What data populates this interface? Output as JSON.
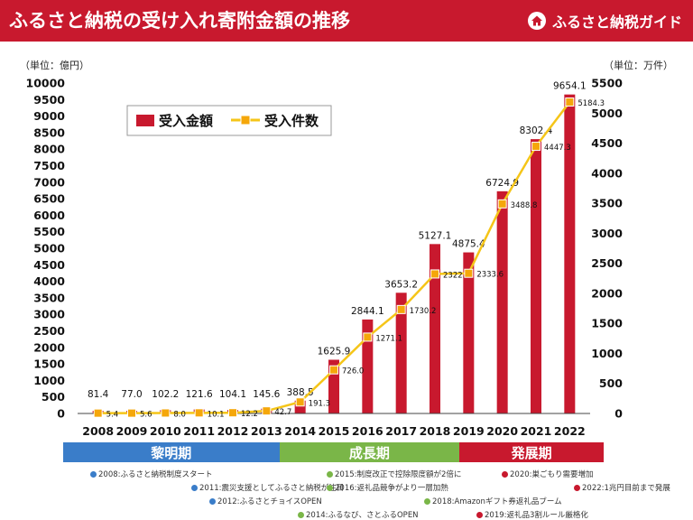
{
  "header": {
    "title": "ふるさと納税の受け入れ寄附金額の推移",
    "brand": "ふるさと納税ガイド"
  },
  "colors": {
    "amount": "#c8192e",
    "count_line": "#f5c518",
    "count_marker": "#f5a70a",
    "header": "#c8192e"
  },
  "chart_data": {
    "type": "bar",
    "categories": [
      "2008",
      "2009",
      "2010",
      "2011",
      "2012",
      "2013",
      "2014",
      "2015",
      "2016",
      "2017",
      "2018",
      "2019",
      "2020",
      "2021",
      "2022"
    ],
    "series": [
      {
        "name": "受入金額",
        "type": "bar",
        "axis": "left",
        "values": [
          81.4,
          77.0,
          102.2,
          121.6,
          104.1,
          145.6,
          388.5,
          1625.9,
          2844.1,
          3653.2,
          5127.1,
          4875.4,
          6724.9,
          8302.4,
          9654.1
        ],
        "labels": [
          "81.4",
          "77.0",
          "102.2",
          "121.6",
          "104.1",
          "145.6",
          "388.5",
          "1625.9",
          "2844.1",
          "3653.2",
          "5127.1",
          "4875.4",
          "6724.9",
          "8302.4",
          "9654.1"
        ]
      },
      {
        "name": "受入件数",
        "type": "line",
        "axis": "right",
        "values": [
          5.4,
          5.6,
          8.0,
          10.1,
          12.2,
          42.7,
          191.3,
          726.0,
          1271.1,
          1730.2,
          2322.4,
          2333.6,
          3488.8,
          4447.3,
          5184.3
        ],
        "labels": [
          "5.4",
          "5.6",
          "8.0",
          "10.1",
          "12.2",
          "42.7",
          "191.3",
          "726.0",
          "1271.1",
          "1730.2",
          "2322.4",
          "2333.6",
          "3488.8",
          "4447.3",
          "5184.3"
        ]
      }
    ],
    "y_left": {
      "unit_label": "（単位：億円）",
      "range": [
        0,
        10000
      ],
      "ticks": [
        "0",
        "500",
        "1000",
        "1500",
        "2000",
        "2500",
        "3000",
        "3500",
        "4000",
        "4500",
        "5000",
        "5500",
        "6000",
        "6500",
        "7000",
        "7500",
        "8000",
        "8500",
        "9000",
        "9500",
        "10000"
      ]
    },
    "y_right": {
      "unit_label": "（単位：万件）",
      "range": [
        0,
        5500
      ],
      "ticks": [
        "0",
        "500",
        "1000",
        "1500",
        "2000",
        "2500",
        "3000",
        "3500",
        "4000",
        "4500",
        "5000",
        "5500"
      ]
    },
    "legend_placement": "top-left",
    "grid": false
  },
  "periods": [
    {
      "label": "黎明期",
      "color": "#3a7dc9",
      "years": 6
    },
    {
      "label": "成長期",
      "color": "#7ab648",
      "years": 5
    },
    {
      "label": "発展期",
      "color": "#c8192e",
      "years": 4
    }
  ],
  "events": [
    {
      "text": "2008:ふるさと納税制度スタート",
      "color": "#3a7dc9"
    },
    {
      "text": "2011:震災支援としてふるさと納税が注目",
      "color": "#3a7dc9"
    },
    {
      "text": "2012:ふるさとチョイスOPEN",
      "color": "#3a7dc9"
    },
    {
      "text": "2015:制度改正で控除限度額が2倍に",
      "color": "#7ab648"
    },
    {
      "text": "2016:返礼品競争がより一層加熱",
      "color": "#7ab648"
    },
    {
      "text": "2018:Amazonギフト券返礼品ブーム",
      "color": "#7ab648"
    },
    {
      "text": "2014:ふるなび、さとふるOPEN",
      "color": "#7ab648"
    },
    {
      "text": "2020:巣ごもり需要増加",
      "color": "#c8192e"
    },
    {
      "text": "2022:1兆円目前まで発展",
      "color": "#c8192e"
    },
    {
      "text": "2019:返礼品3割ルール厳格化",
      "color": "#c8192e"
    }
  ]
}
